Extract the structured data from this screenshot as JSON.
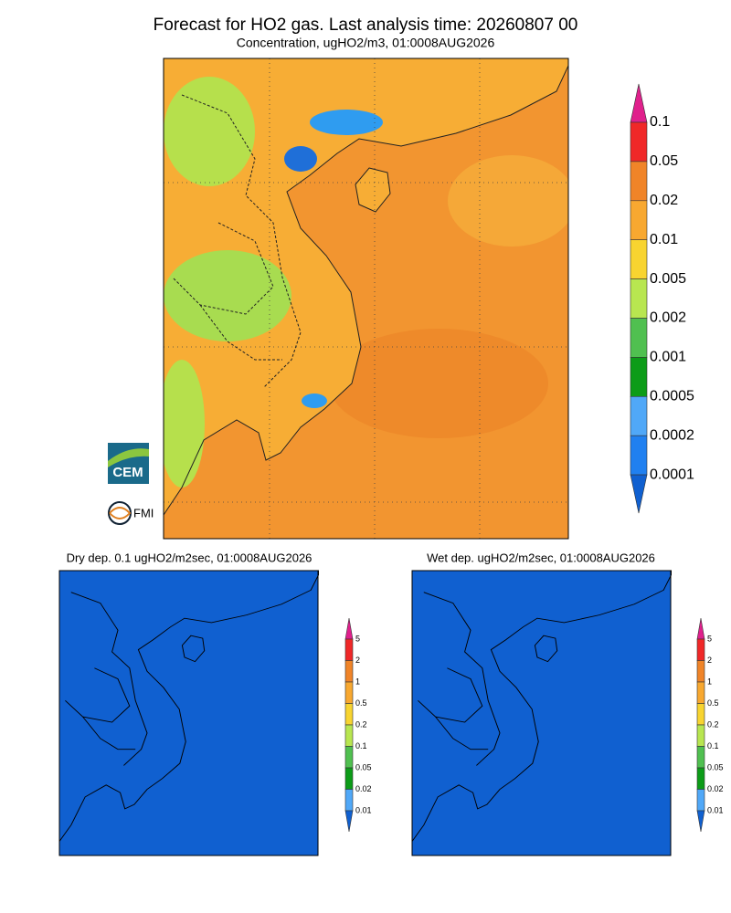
{
  "title": "Forecast for HO2 gas. Last analysis time: 20260807 00",
  "subtitle": "Concentration, ugHO2/m3, 01:0008AUG2026",
  "main_colorbar": {
    "labels": [
      "0.1",
      "0.05",
      "0.02",
      "0.01",
      "0.005",
      "0.002",
      "0.001",
      "0.0005",
      "0.0002",
      "0.0001"
    ]
  },
  "palette": [
    "#e0208c",
    "#f02828",
    "#f08428",
    "#f8a830",
    "#f8d430",
    "#b8e650",
    "#50c050",
    "#0c9c18",
    "#50a8f8",
    "#2080f0",
    "#1060d0"
  ],
  "panels": [
    {
      "title": "Dry dep. 0.1 ugHO2/m2sec, 01:0008AUG2026",
      "colorbar_labels": [
        "5",
        "2",
        "1",
        "0.5",
        "0.2",
        "0.1",
        "0.05",
        "0.02",
        "0.01"
      ]
    },
    {
      "title": "Wet dep. ugHO2/m2sec, 01:0008AUG2026",
      "colorbar_labels": [
        "5",
        "2",
        "1",
        "0.5",
        "0.2",
        "0.1",
        "0.05",
        "0.02",
        "0.01"
      ]
    }
  ],
  "logos": {
    "cem": "CEM",
    "fmi": "FMI"
  }
}
